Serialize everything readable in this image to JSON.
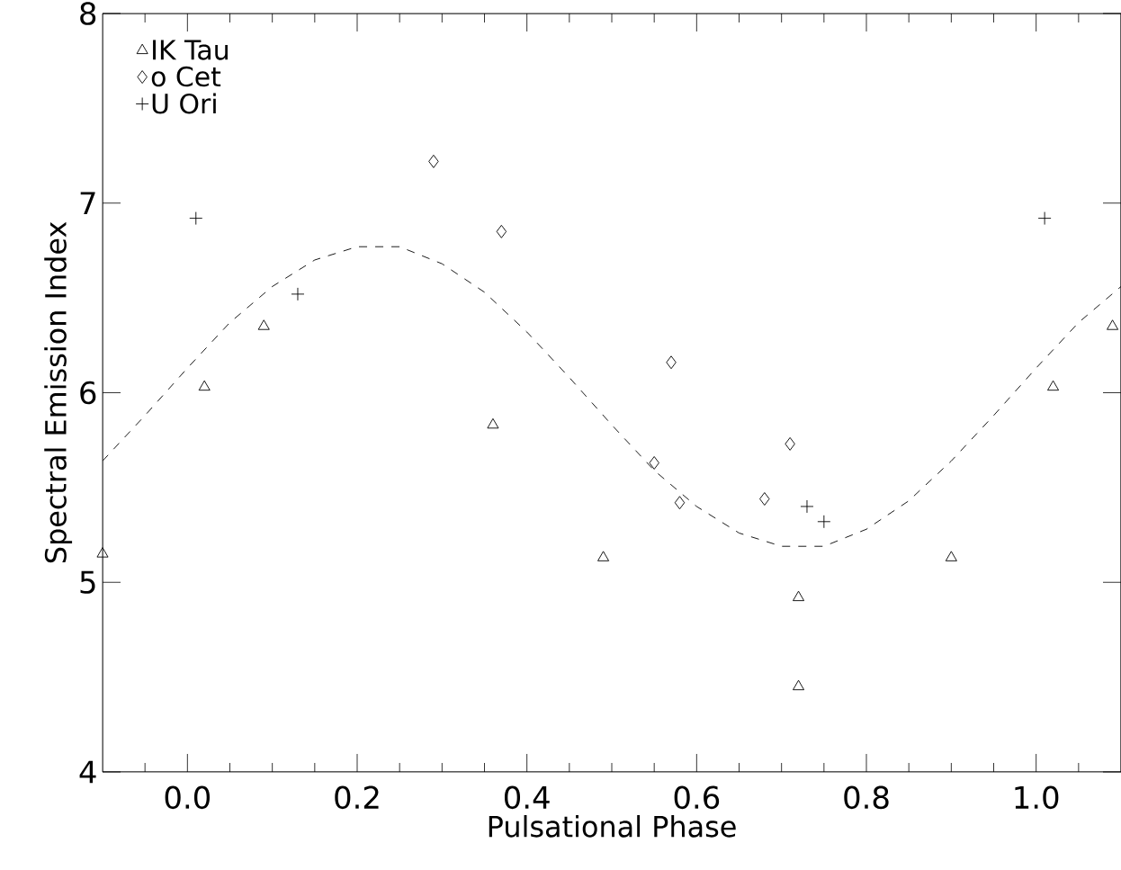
{
  "chart_data": {
    "type": "scatter",
    "xlabel": "Pulsational Phase",
    "ylabel": "Spectral Emission Index",
    "xlim": [
      -0.1,
      1.1
    ],
    "ylim": [
      4,
      8
    ],
    "xticks": [
      {
        "value": 0.0,
        "label": "0.0"
      },
      {
        "value": 0.2,
        "label": "0.2"
      },
      {
        "value": 0.4,
        "label": "0.4"
      },
      {
        "value": 0.6,
        "label": "0.6"
      },
      {
        "value": 0.8,
        "label": "0.8"
      },
      {
        "value": 1.0,
        "label": "1.0"
      }
    ],
    "yticks": [
      4,
      5,
      6,
      7,
      8
    ],
    "legend": "top left",
    "grid": false,
    "series": [
      {
        "name": "IK Tau",
        "color": "#000000",
        "marker": "triangle",
        "x": [
          -0.1,
          0.02,
          0.09,
          0.36,
          0.49,
          0.72,
          0.72,
          0.9,
          1.02,
          1.09
        ],
        "values": [
          5.15,
          6.03,
          6.35,
          5.83,
          5.13,
          4.92,
          4.45,
          5.13,
          6.03,
          6.35
        ]
      },
      {
        "name": "o Cet",
        "color": "#000000",
        "marker": "diamond",
        "x": [
          0.29,
          0.37,
          0.55,
          0.57,
          0.58,
          0.68,
          0.71
        ],
        "values": [
          7.22,
          6.85,
          5.63,
          6.16,
          5.42,
          5.44,
          5.73
        ]
      },
      {
        "name": "U Ori",
        "color": "#000000",
        "marker": "cross",
        "x": [
          0.01,
          0.13,
          0.73,
          0.75,
          1.01
        ],
        "values": [
          6.92,
          6.52,
          5.4,
          5.32,
          6.92
        ]
      },
      {
        "type": "line",
        "color": "#000000",
        "marker": "none",
        "line_style": "dashed",
        "x": [
          -0.1,
          -0.05,
          0.0,
          0.05,
          0.1,
          0.15,
          0.2,
          0.25,
          0.3,
          0.35,
          0.4,
          0.45,
          0.5,
          0.55,
          0.6,
          0.65,
          0.7,
          0.75,
          0.8,
          0.85,
          0.9,
          0.95,
          1.0,
          1.05,
          1.1
        ],
        "values": [
          5.64,
          5.88,
          6.13,
          6.37,
          6.56,
          6.7,
          6.77,
          6.77,
          6.68,
          6.53,
          6.32,
          6.08,
          5.83,
          5.59,
          5.4,
          5.26,
          5.19,
          5.19,
          5.28,
          5.43,
          5.64,
          5.88,
          6.13,
          6.37,
          6.56
        ]
      }
    ]
  }
}
